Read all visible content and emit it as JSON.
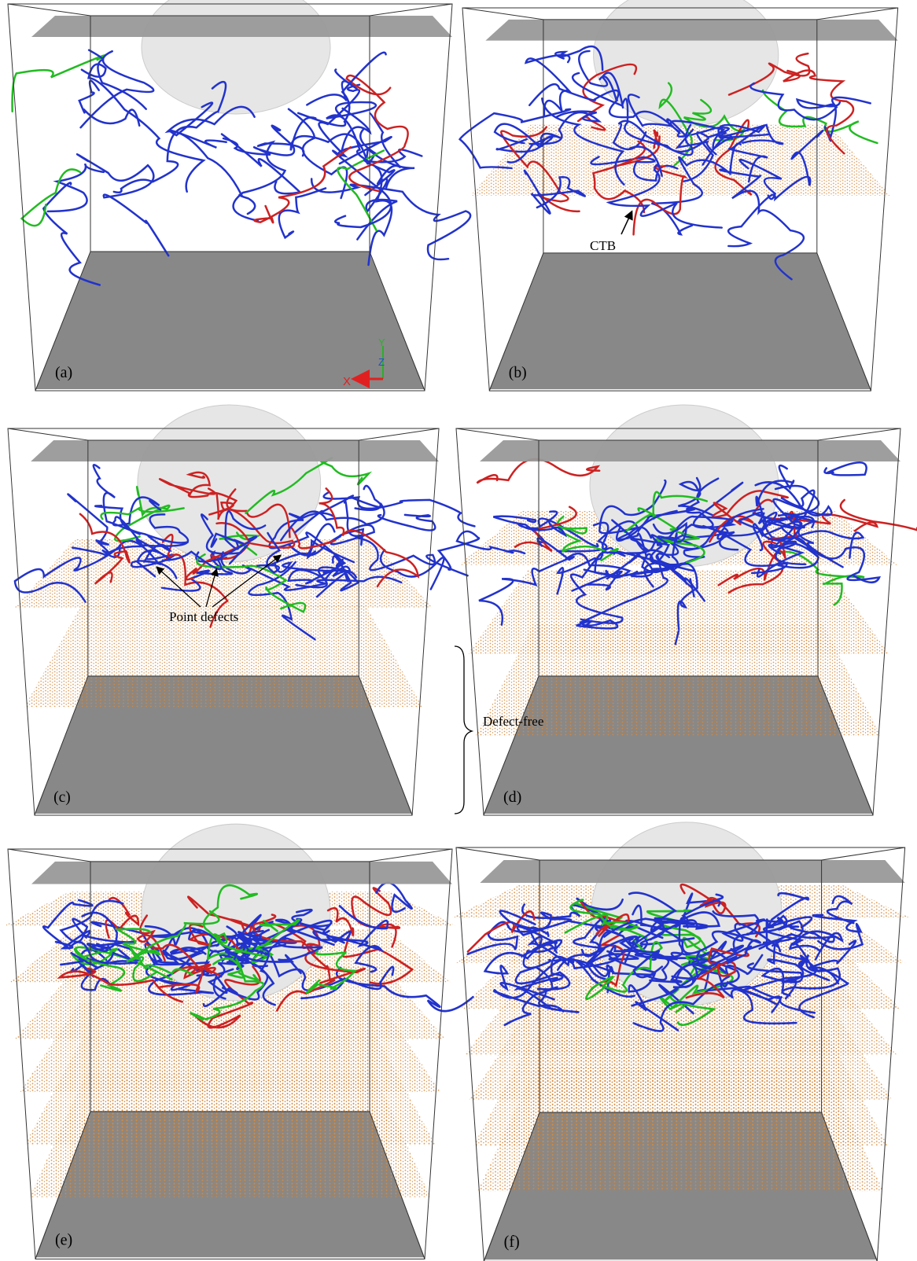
{
  "panels": [
    {
      "label": "(a)"
    },
    {
      "label": "(b)"
    },
    {
      "label": "(c)"
    },
    {
      "label": "(d)"
    },
    {
      "label": "(e)"
    },
    {
      "label": "(f)"
    }
  ],
  "annotations": {
    "ctb": "CTB",
    "point_defects": "Point defects",
    "defect_free": "Defect-free"
  },
  "axes": {
    "y": "Y",
    "z": "Z",
    "x": "X"
  }
}
